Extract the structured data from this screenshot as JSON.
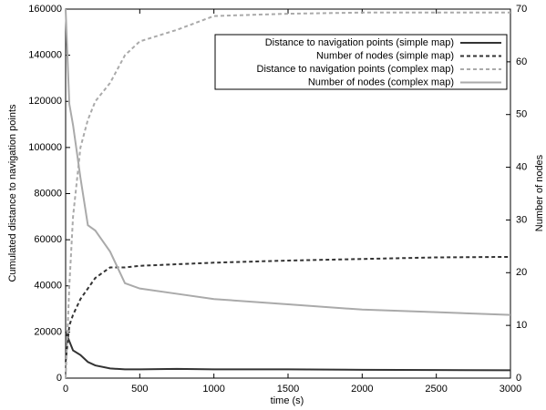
{
  "chart_data": {
    "type": "line",
    "xlabel": "time (s)",
    "ylabel": "Cumulated distance to navigation points",
    "y2label": "Number of nodes",
    "x": [
      0,
      25,
      50,
      100,
      150,
      200,
      300,
      400,
      500,
      750,
      1000,
      1500,
      2000,
      2500,
      3000
    ],
    "series": [
      {
        "name": "Distance to navigation points (simple map)",
        "color": "#333333",
        "dashed": false,
        "values": [
          20000,
          16000,
          12000,
          10000,
          7000,
          5500,
          4200,
          3800,
          3800,
          4000,
          3800,
          3800,
          3600,
          3500,
          3400
        ]
      },
      {
        "name": "Number of nodes (simple map)",
        "color": "#333333",
        "dashed": true,
        "axis": "y2",
        "values": [
          3,
          10,
          12,
          15,
          17,
          19,
          21,
          21,
          21.3,
          21.6,
          21.9,
          22.3,
          22.6,
          22.9,
          23
        ]
      },
      {
        "name": "Distance to navigation points (complex map)",
        "color": "#aaaaaa",
        "dashed": true,
        "values": [
          0,
          40000,
          70000,
          100000,
          112000,
          120000,
          128000,
          140000,
          146000,
          151000,
          157000,
          158000,
          158500,
          158500,
          158500
        ]
      },
      {
        "name": "Number of nodes (complex map)",
        "color": "#aaaaaa",
        "dashed": false,
        "axis": "y2",
        "values": [
          70,
          52,
          48,
          38,
          29,
          28,
          24,
          18,
          17,
          16,
          15,
          14,
          13,
          12.5,
          12
        ]
      }
    ],
    "xlim": [
      0,
      3000
    ],
    "xticks": [
      0,
      500,
      1000,
      1500,
      2000,
      2500,
      3000
    ],
    "ylim": [
      0,
      160000
    ],
    "yticks": [
      0,
      20000,
      40000,
      60000,
      80000,
      100000,
      120000,
      140000,
      160000
    ],
    "y2lim": [
      0,
      70
    ],
    "y2ticks": [
      0,
      10,
      20,
      30,
      40,
      50,
      60,
      70
    ],
    "legend": "top-right"
  }
}
